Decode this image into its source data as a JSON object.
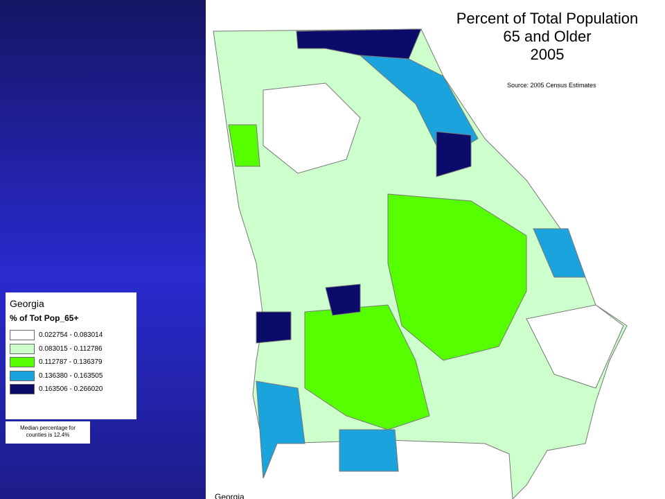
{
  "title_lines": [
    "Percent of Total Population",
    "65 and Older",
    "2005"
  ],
  "source": "Source: 2005 Census Estimates",
  "legend": {
    "title": "Georgia",
    "subtitle": "% of Tot Pop_65+",
    "entries": [
      {
        "label": "0.022754 - 0.083014",
        "color": "#ffffff"
      },
      {
        "label": "0.083015 - 0.112786",
        "color": "#ccffcc"
      },
      {
        "label": "0.112787 - 0.136379",
        "color": "#55ff00"
      },
      {
        "label": "0.136380 - 0.163505",
        "color": "#1ba3de"
      },
      {
        "label": "0.163506 - 0.266020",
        "color": "#0b0b6b"
      }
    ]
  },
  "note": [
    "Median percentage for",
    "counties is 12.4%"
  ],
  "map_label": "Georgia"
}
